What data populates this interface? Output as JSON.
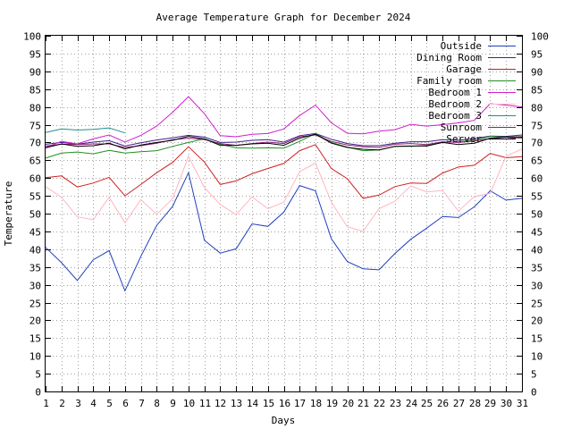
{
  "chart_data": {
    "type": "line",
    "title": "Average Temperature Graph for December 2024",
    "xlabel": "Days",
    "ylabel": "Temperature",
    "xlim": [
      1,
      31
    ],
    "ylim": [
      0,
      100
    ],
    "x_ticks": [
      1,
      2,
      3,
      4,
      5,
      6,
      7,
      8,
      9,
      10,
      11,
      12,
      13,
      14,
      15,
      16,
      17,
      18,
      19,
      20,
      21,
      22,
      23,
      24,
      25,
      26,
      27,
      28,
      29,
      30,
      31
    ],
    "y_ticks": [
      0,
      5,
      10,
      15,
      20,
      25,
      30,
      35,
      40,
      45,
      50,
      55,
      60,
      65,
      70,
      75,
      80,
      85,
      90,
      95,
      100
    ],
    "grid": true,
    "legend": "top-right",
    "series": [
      {
        "name": "Outside",
        "color": "#1f3fbf",
        "values": [
          40.5,
          36.2,
          31.2,
          37.0,
          39.6,
          28.3,
          38.0,
          46.7,
          52.0,
          61.5,
          42.5,
          38.9,
          40.1,
          47.1,
          46.4,
          50.4,
          57.9,
          56.4,
          42.9,
          36.5,
          34.5,
          34.2,
          38.8,
          42.8,
          45.9,
          49.2,
          48.9,
          51.9,
          56.4,
          53.8,
          54.3
        ]
      },
      {
        "name": "Dining Room",
        "color": "#3f1f8f",
        "values": [
          69.5,
          70.0,
          69.5,
          70.1,
          70.5,
          69.0,
          69.9,
          70.7,
          71.3,
          72.0,
          71.5,
          70.0,
          70.1,
          70.6,
          70.8,
          70.1,
          71.9,
          72.5,
          70.9,
          69.7,
          69.1,
          69.1,
          69.8,
          70.2,
          70.2,
          70.8,
          70.6,
          71.1,
          71.8,
          71.7,
          72.1
        ]
      },
      {
        "name": "Garage",
        "color": "#cf1f1f",
        "values": [
          60.1,
          60.6,
          57.5,
          58.6,
          60.2,
          55.0,
          58.2,
          61.5,
          64.4,
          68.8,
          64.5,
          58.2,
          59.2,
          61.2,
          62.7,
          64.1,
          67.7,
          69.4,
          62.7,
          59.8,
          54.3,
          55.2,
          57.6,
          58.6,
          58.5,
          61.4,
          63.1,
          63.6,
          66.9,
          65.7,
          66.0
        ]
      },
      {
        "name": "Family room",
        "color": "#1f8f1f",
        "values": [
          65.6,
          67.0,
          67.3,
          66.8,
          67.8,
          67.0,
          67.4,
          67.7,
          68.9,
          70.0,
          71.0,
          69.5,
          68.5,
          68.4,
          68.5,
          68.4,
          70.3,
          72.5,
          70.0,
          68.7,
          67.7,
          67.9,
          68.9,
          68.9,
          69.2,
          70.0,
          70.2,
          70.6,
          71.7,
          71.5,
          71.2
        ]
      },
      {
        "name": "Bedroom 1",
        "color": "#cf1fcf",
        "values": [
          68.6,
          70.3,
          69.6,
          71.0,
          72.1,
          70.1,
          72.0,
          74.6,
          78.5,
          82.9,
          78.1,
          71.9,
          71.6,
          72.3,
          72.5,
          73.8,
          77.6,
          80.5,
          75.5,
          72.6,
          72.4,
          73.2,
          73.6,
          75.1,
          74.6,
          75.0,
          75.5,
          76.2,
          80.9,
          80.5,
          80.0
        ]
      },
      {
        "name": "Bedroom 2",
        "color": "#ffb6c1",
        "values": [
          57.6,
          54.6,
          49.1,
          48.3,
          54.6,
          47.4,
          53.9,
          49.8,
          54.2,
          66.1,
          57.3,
          52.6,
          49.7,
          54.7,
          51.4,
          53.2,
          61.8,
          64.2,
          53.2,
          46.3,
          45.0,
          51.4,
          53.5,
          57.8,
          56.1,
          56.5,
          50.7,
          54.8,
          55.7,
          66.1,
          68.2
        ]
      },
      {
        "name": "Bedroom 3",
        "color": "#1f8f8f",
        "values": [
          72.8,
          73.8,
          73.5,
          73.7,
          74.1,
          72.7,
          null,
          null,
          null,
          null,
          null,
          null,
          null,
          null,
          null,
          null,
          null,
          null,
          null,
          null,
          null,
          null,
          null,
          null,
          null,
          null,
          null,
          null,
          null,
          null,
          null
        ]
      },
      {
        "name": "Sunroom",
        "color": "#8f1f6f",
        "values": [
          69.0,
          69.5,
          69.4,
          69.6,
          69.6,
          68.6,
          69.1,
          69.8,
          70.8,
          71.2,
          70.8,
          69.7,
          69.2,
          69.7,
          70.1,
          69.7,
          71.6,
          72.1,
          70.3,
          69.3,
          68.8,
          68.6,
          69.5,
          69.7,
          69.4,
          70.2,
          70.0,
          70.4,
          71.1,
          71.0,
          71.4
        ]
      },
      {
        "name": "Server",
        "color": "#000000",
        "values": [
          68.5,
          69.6,
          68.9,
          69.1,
          69.8,
          68.2,
          69.3,
          70.0,
          70.6,
          71.7,
          71.0,
          69.2,
          69.2,
          69.6,
          69.8,
          69.2,
          71.2,
          72.3,
          69.8,
          68.6,
          68.1,
          67.9,
          68.9,
          69.0,
          69.0,
          70.0,
          69.4,
          69.8,
          71.2,
          71.5,
          71.6
        ]
      }
    ]
  }
}
